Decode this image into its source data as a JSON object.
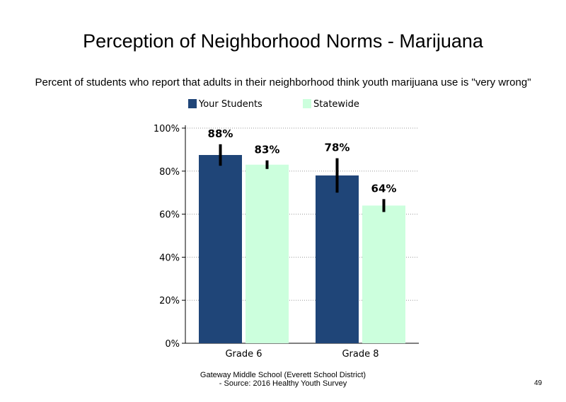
{
  "slide": {
    "footer_line1": "Gateway Middle School (Everett School District)",
    "footer_line2": "- Source: 2016 Healthy Youth Survey",
    "page_number": "49"
  },
  "colors": {
    "your_students": "#1f4578",
    "statewide": "#ccffdd",
    "grid": "#999999"
  },
  "chart_data": {
    "type": "bar",
    "title": "Perception of Neighborhood Norms - Marijuana",
    "subtitle": "Percent of students who report that adults in their neighborhood think youth marijuana use is \"very wrong\"",
    "categories": [
      "Grade 6",
      "Grade 8"
    ],
    "series": [
      {
        "name": "Your Students",
        "values": [
          87.5,
          78
        ],
        "labels": [
          "88%",
          "78%"
        ],
        "error_low": [
          82.5,
          70
        ],
        "error_high": [
          92.5,
          86
        ]
      },
      {
        "name": "Statewide",
        "values": [
          83,
          64
        ],
        "labels": [
          "83%",
          "64%"
        ],
        "error_low": [
          81,
          61
        ],
        "error_high": [
          85,
          67
        ]
      }
    ],
    "ylim": [
      0,
      100
    ],
    "yticks": [
      0,
      20,
      40,
      60,
      80,
      100
    ],
    "ytick_labels": [
      "0%",
      "20%",
      "40%",
      "60%",
      "80%",
      "100%"
    ],
    "grid": "horizontal-dotted",
    "legend_position": "top"
  }
}
